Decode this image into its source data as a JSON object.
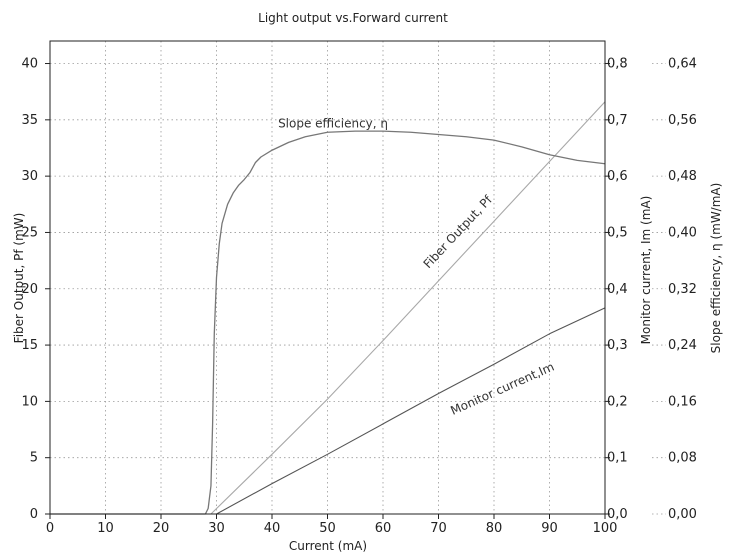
{
  "chart_data": {
    "type": "line",
    "title": "Light output vs.Forward current",
    "xlabel": "Current  (mA)",
    "ylabel_left": "Fiber Output,  Pf  (mW)",
    "ylabel_right1": "Monitor current,  Im (mA)",
    "ylabel_right2": "Slope efficiency,  η  (mW/mA)",
    "xlim": [
      0,
      100
    ],
    "ylim_left": [
      0,
      42
    ],
    "ylim_right1": [
      0,
      0.84
    ],
    "ylim_right2": [
      0,
      0.672
    ],
    "grid": true,
    "x_ticks": [
      "0",
      "10",
      "20",
      "30",
      "40",
      "50",
      "60",
      "70",
      "80",
      "90",
      "100"
    ],
    "y_left_ticks": [
      "0",
      "5",
      "10",
      "15",
      "20",
      "25",
      "30",
      "35",
      "40"
    ],
    "y_right1_ticks": [
      "0,0",
      "0,1",
      "0,2",
      "0,3",
      "0,4",
      "0,5",
      "0,6",
      "0,7",
      "0,8"
    ],
    "y_right2_ticks": [
      "0,00",
      "0,08",
      "0,16",
      "0,24",
      "0,32",
      "0,40",
      "0,48",
      "0,56",
      "0,64"
    ],
    "series": [
      {
        "name": "Fiber Output, Pf",
        "axis": "left",
        "color": "#a8a8a8",
        "x": [
          0,
          29,
          40,
          50,
          60,
          70,
          80,
          90,
          100
        ],
        "y": [
          0,
          0,
          5.3,
          10.2,
          15.4,
          20.7,
          26.0,
          31.3,
          36.6
        ]
      },
      {
        "name": "Monitor current,Im",
        "axis": "left",
        "color": "#555555",
        "x": [
          0,
          30,
          40,
          50,
          60,
          70,
          80,
          90,
          100
        ],
        "y": [
          0,
          0,
          2.7,
          5.3,
          8.0,
          10.7,
          13.3,
          16.0,
          18.3
        ]
      },
      {
        "name": "Slope efficiency, η",
        "axis": "left",
        "color": "#777777",
        "x": [
          0,
          28,
          28.5,
          29,
          29.3,
          29.6,
          30,
          30.5,
          31,
          32,
          33,
          34,
          35,
          36,
          37,
          38,
          40,
          43,
          46,
          50,
          55,
          60,
          65,
          70,
          75,
          80,
          85,
          90,
          95,
          100
        ],
        "y": [
          0,
          0,
          0.5,
          2.5,
          8,
          16,
          21,
          24,
          25.8,
          27.5,
          28.5,
          29.2,
          29.7,
          30.3,
          31.2,
          31.7,
          32.3,
          33.0,
          33.5,
          33.9,
          34.0,
          34.0,
          33.9,
          33.7,
          33.5,
          33.2,
          32.6,
          31.9,
          31.4,
          31.1
        ]
      }
    ],
    "annotations": [
      {
        "text": "Slope efficiency, η",
        "x": 51,
        "y": 34.3,
        "rotate": 0
      },
      {
        "text": "Fiber Output, Pf",
        "x": 74,
        "y": 24.8,
        "rotate": -47
      },
      {
        "text": "Monitor current,Im",
        "x": 81.8,
        "y": 10.8,
        "rotate": -24
      }
    ]
  }
}
